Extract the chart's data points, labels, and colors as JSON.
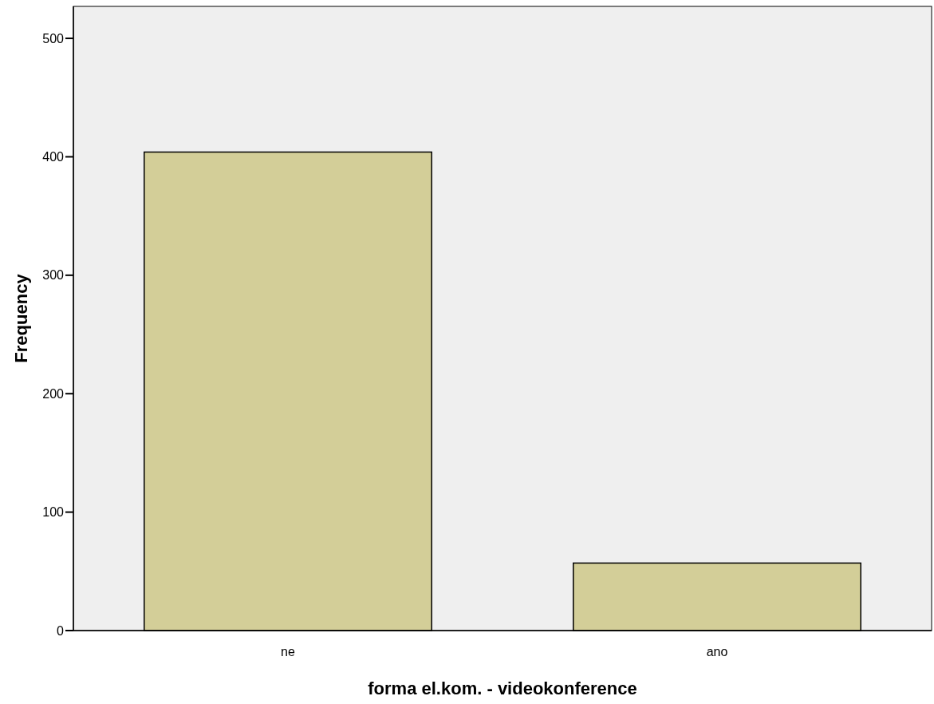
{
  "chart_data": {
    "type": "bar",
    "xlabel": "forma el.kom. - videokonference",
    "ylabel": "Frequency",
    "categories": [
      "ne",
      "ano"
    ],
    "values": [
      404,
      57
    ],
    "color": "#d3ce98",
    "ylim": [
      0,
      527
    ],
    "yticks": [
      0,
      100,
      200,
      300,
      400,
      500
    ],
    "grid": false
  }
}
